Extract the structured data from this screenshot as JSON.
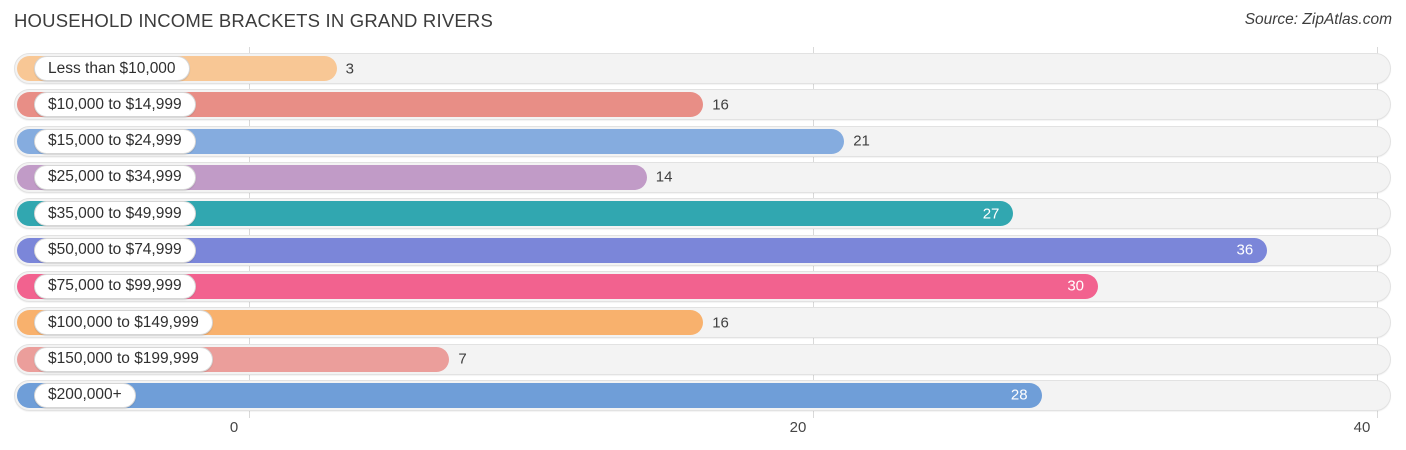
{
  "header": {
    "title": "HOUSEHOLD INCOME BRACKETS IN GRAND RIVERS",
    "source": "Source: ZipAtlas.com"
  },
  "chart_data": {
    "type": "bar",
    "orientation": "horizontal",
    "title": "HOUSEHOLD INCOME BRACKETS IN GRAND RIVERS",
    "xlabel": "",
    "ylabel": "",
    "xlim": [
      0,
      40
    ],
    "x_ticks": [
      0,
      20,
      40
    ],
    "grid": true,
    "legend": false,
    "rows": [
      {
        "label": "Less than $10,000",
        "value": 3,
        "color": "#f8c795",
        "value_inside": false
      },
      {
        "label": "$10,000 to $14,999",
        "value": 16,
        "color": "#e88e86",
        "value_inside": false
      },
      {
        "label": "$15,000 to $24,999",
        "value": 21,
        "color": "#85acdf",
        "value_inside": false
      },
      {
        "label": "$25,000 to $34,999",
        "value": 14,
        "color": "#c19bc7",
        "value_inside": false
      },
      {
        "label": "$35,000 to $49,999",
        "value": 27,
        "color": "#31a7b0",
        "value_inside": true
      },
      {
        "label": "$50,000 to $74,999",
        "value": 36,
        "color": "#7b86d9",
        "value_inside": true
      },
      {
        "label": "$75,000 to $99,999",
        "value": 30,
        "color": "#f2628f",
        "value_inside": true
      },
      {
        "label": "$100,000 to $149,999",
        "value": 16,
        "color": "#f8b16d",
        "value_inside": false
      },
      {
        "label": "$150,000 to $199,999",
        "value": 7,
        "color": "#eb9e9b",
        "value_inside": false
      },
      {
        "label": "$200,000+",
        "value": 28,
        "color": "#6f9ed8",
        "value_inside": true
      }
    ]
  }
}
